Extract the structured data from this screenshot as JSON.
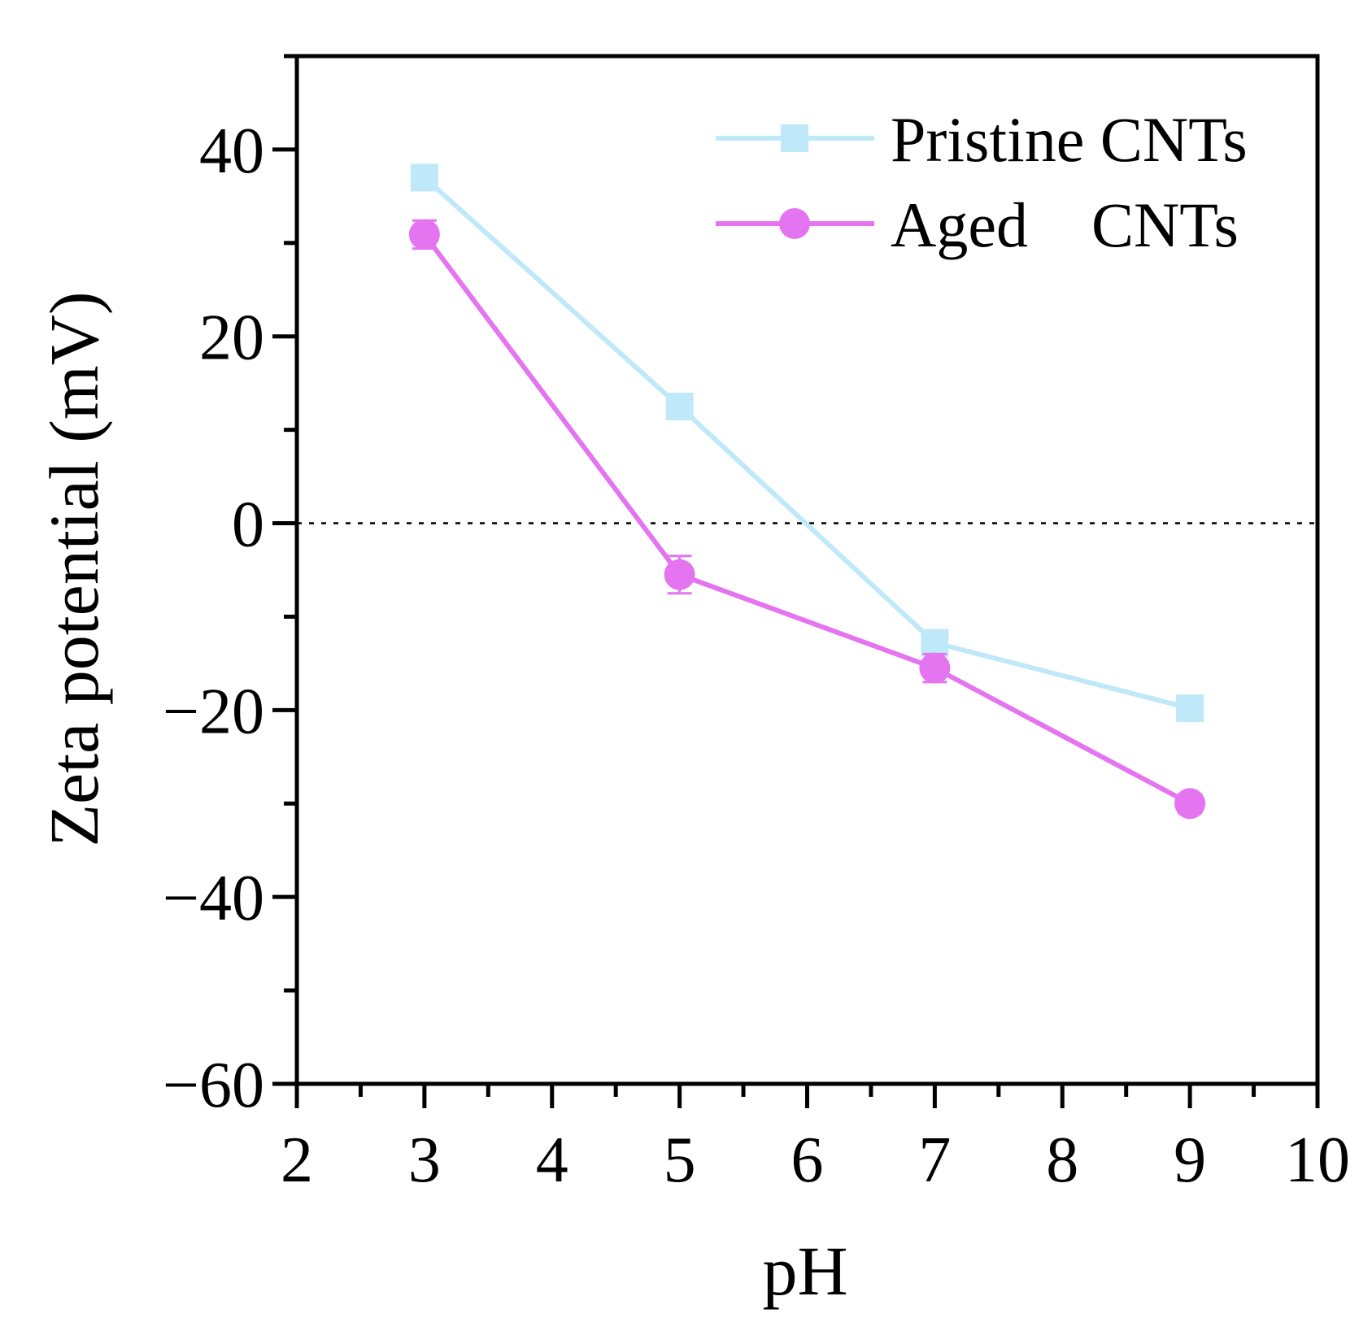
{
  "chart_data": {
    "type": "line",
    "title": "",
    "xlabel": "pH",
    "ylabel": "Zeta potential (mV)",
    "xlim": [
      2,
      10
    ],
    "ylim": [
      -60,
      50
    ],
    "xticks": [
      2,
      3,
      4,
      5,
      6,
      7,
      8,
      9,
      10
    ],
    "xtick_labels": [
      "2",
      "3",
      "4",
      "5",
      "6",
      "7",
      "8",
      "9",
      "10"
    ],
    "xminor": [
      2.5,
      3.5,
      4.5,
      5.5,
      6.5,
      7.5,
      8.5,
      9.5
    ],
    "yticks": [
      40,
      20,
      0,
      -20,
      -40,
      -60
    ],
    "ytick_labels": [
      "40",
      "20",
      "0",
      "−20",
      "−40",
      "−60"
    ],
    "yminor": [
      50,
      30,
      10,
      -10,
      -30,
      -50
    ],
    "reference_line": {
      "y": 0,
      "style": "dotted"
    },
    "legend_position": "top-right",
    "series": [
      {
        "name": "Pristine CNTs",
        "legend_label": "Pristine CNTs",
        "marker": "square",
        "color": "#bfe8f9",
        "x": [
          3,
          5,
          7,
          9
        ],
        "y": [
          37,
          12.5,
          -12.8,
          -19.8
        ],
        "err": [
          0.8,
          0.8,
          0.8,
          0.8
        ]
      },
      {
        "name": "Aged CNTs",
        "legend_label": "Aged    CNTs",
        "marker": "circle",
        "color": "#e474f0",
        "x": [
          3,
          5,
          7,
          9
        ],
        "y": [
          30.9,
          -5.5,
          -15.5,
          -30
        ],
        "err": [
          1.5,
          2.0,
          1.5,
          1.0
        ]
      }
    ]
  }
}
